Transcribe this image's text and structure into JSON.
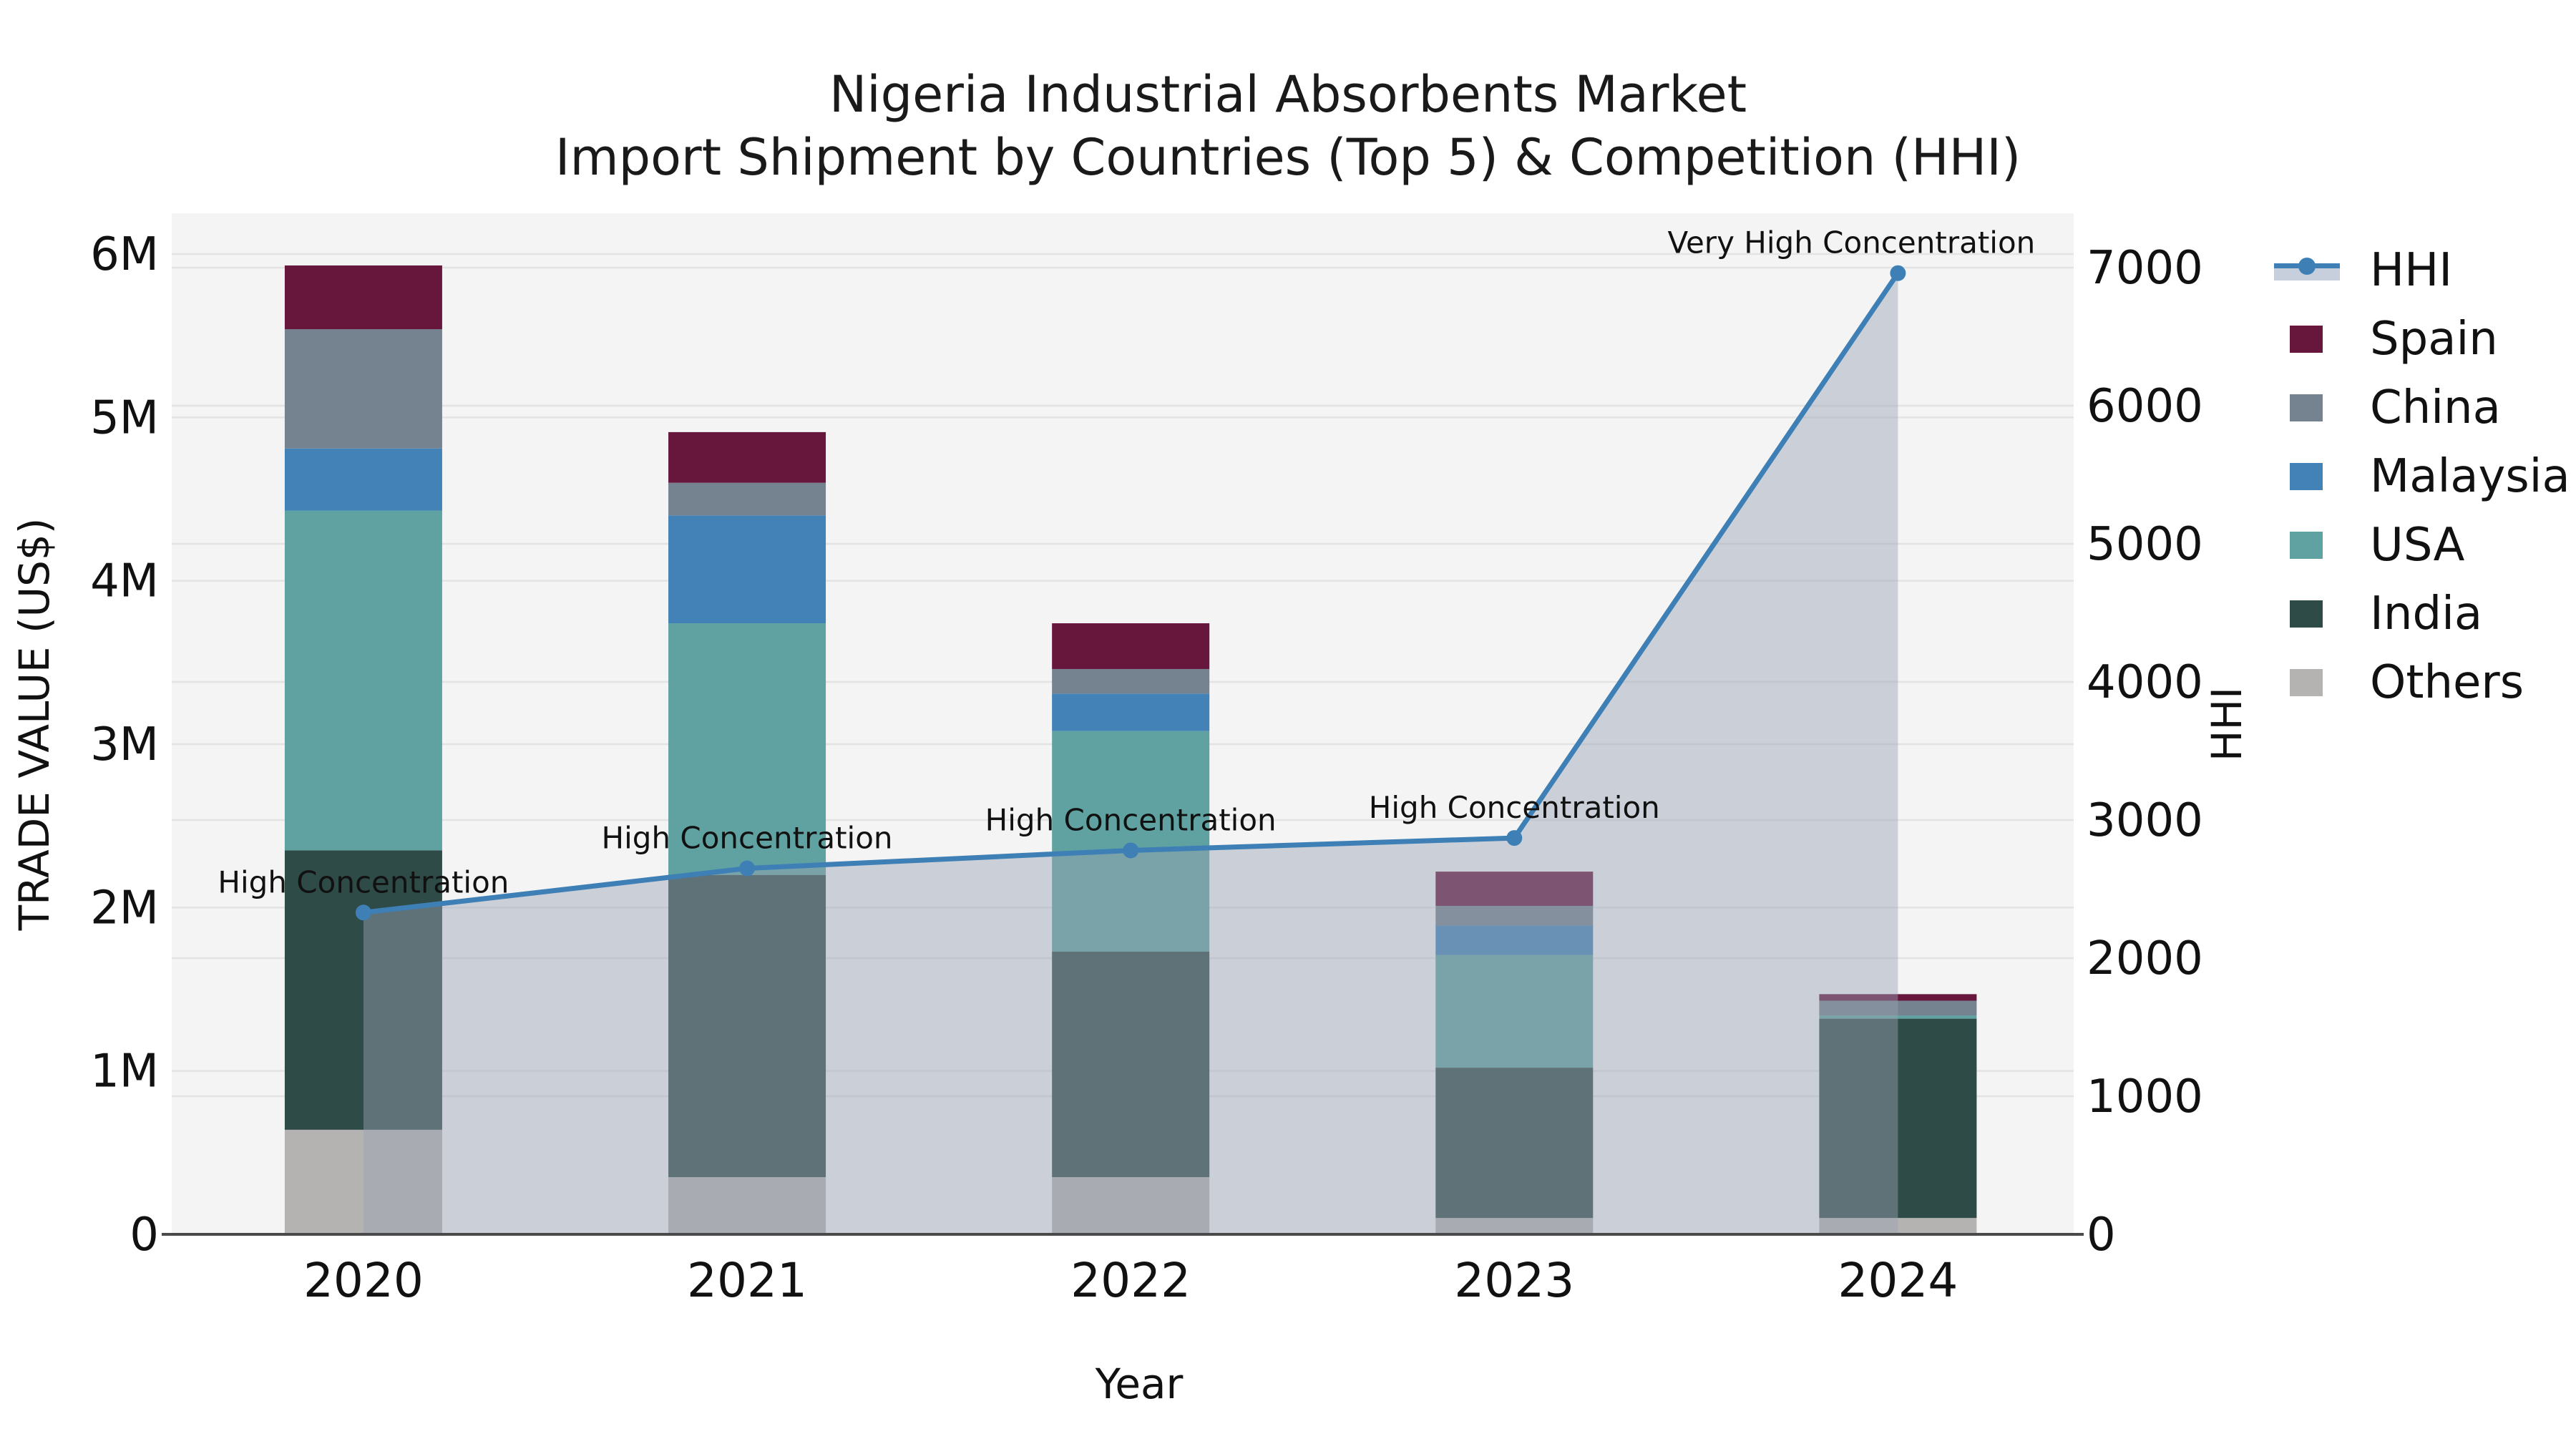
{
  "title": [
    "Nigeria Industrial Absorbents Market",
    "Import Shipment by Countries (Top 5) & Competition (HHI)"
  ],
  "colors": {
    "plot_bg": "#f4f4f4",
    "grid": "#e3e3e3",
    "axis_line": "#4a4a4a",
    "text": "#111111",
    "hhi_line": "#3e80b6",
    "hhi_fill": "rgba(152,162,180,0.45)",
    "spain": "#67163c",
    "china": "#75828f",
    "malaysia": "#4382b6",
    "usa": "#60a2a1",
    "india": "#2f4b47",
    "others": "#b5b3b1"
  },
  "legend": {
    "items": [
      {
        "label": "HHI",
        "type": "line",
        "color": "#3e80b6"
      },
      {
        "label": "Spain",
        "type": "swatch",
        "color": "#67163c"
      },
      {
        "label": "China",
        "type": "swatch",
        "color": "#75828f"
      },
      {
        "label": "Malaysia",
        "type": "swatch",
        "color": "#4382b6"
      },
      {
        "label": "USA",
        "type": "swatch",
        "color": "#60a2a1"
      },
      {
        "label": "India",
        "type": "swatch",
        "color": "#2f4b47"
      },
      {
        "label": "Others",
        "type": "swatch",
        "color": "#b5b3b1"
      }
    ]
  },
  "chart_data": {
    "type": "combo: stacked-bar + line-area",
    "title": "Nigeria Industrial Absorbents Market — Import Shipment by Countries (Top 5) & Competition (HHI)",
    "categories": [
      "2020",
      "2021",
      "2022",
      "2023",
      "2024"
    ],
    "xlabel": "Year",
    "bar_axis": {
      "label": "TRADE VALUE (US$)",
      "unit": "US$ millions",
      "min": 0,
      "max": 6,
      "ticks": [
        "0",
        "1M",
        "2M",
        "3M",
        "4M",
        "5M",
        "6M"
      ],
      "grid": true
    },
    "line_axis": {
      "label": "HHI",
      "min": 0,
      "max": 7000,
      "ticks": [
        "0",
        "1000",
        "2000",
        "3000",
        "4000",
        "5000",
        "6000",
        "7000"
      ],
      "grid": true
    },
    "stack_order_bottom_to_top": [
      "Others",
      "India",
      "USA",
      "Malaysia",
      "China",
      "Spain"
    ],
    "series": [
      {
        "name": "Others",
        "color": "#b5b3b1",
        "values": [
          0.64,
          0.35,
          0.35,
          0.1,
          0.1
        ]
      },
      {
        "name": "India",
        "color": "#2f4b47",
        "values": [
          1.71,
          1.85,
          1.38,
          0.92,
          1.22
        ]
      },
      {
        "name": "USA",
        "color": "#60a2a1",
        "values": [
          2.08,
          1.54,
          1.35,
          0.69,
          0.02
        ]
      },
      {
        "name": "Malaysia",
        "color": "#4382b6",
        "values": [
          0.38,
          0.66,
          0.23,
          0.18,
          0.0
        ]
      },
      {
        "name": "China",
        "color": "#75828f",
        "values": [
          0.73,
          0.2,
          0.15,
          0.12,
          0.09
        ]
      },
      {
        "name": "Spain",
        "color": "#67163c",
        "values": [
          0.39,
          0.31,
          0.28,
          0.21,
          0.04
        ]
      }
    ],
    "line_series": {
      "name": "HHI",
      "color": "#3e80b6",
      "area_fill": "rgba(152,162,180,0.45)",
      "values": [
        2330,
        2650,
        2780,
        2870,
        6960
      ]
    },
    "annotations": [
      {
        "category": "2020",
        "text": "High Concentration",
        "dx": 0
      },
      {
        "category": "2021",
        "text": "High Concentration",
        "dx": 0
      },
      {
        "category": "2022",
        "text": "High Concentration",
        "dx": 0
      },
      {
        "category": "2023",
        "text": "High Concentration",
        "dx": 0
      },
      {
        "category": "2024",
        "text": "Very High Concentration",
        "dx": -65
      }
    ],
    "legend_position": "right-top-outside",
    "legend_entries": [
      "HHI",
      "Spain",
      "China",
      "Malaysia",
      "USA",
      "India",
      "Others"
    ]
  }
}
